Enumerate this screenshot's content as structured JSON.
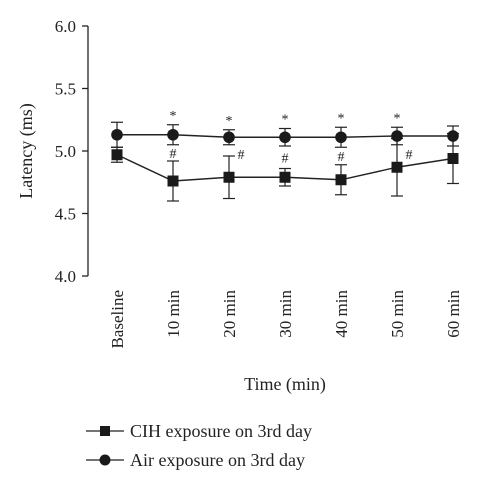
{
  "chart_data": {
    "type": "line",
    "ylabel": "Latency (ms)",
    "xlabel": "Time (min)",
    "ylim": [
      4.0,
      6.0
    ],
    "yticks": [
      "4.0",
      "4.5",
      "5.0",
      "5.5",
      "6.0"
    ],
    "categories": [
      "Baseline",
      "10 min",
      "20 min",
      "30 min",
      "40 min",
      "50 min",
      "60 min"
    ],
    "grid": false,
    "legend_position": "bottom",
    "series": [
      {
        "name": "CIH exposure on 3rd day",
        "marker": "square",
        "values": [
          4.97,
          4.76,
          4.79,
          4.79,
          4.77,
          4.87,
          4.94
        ],
        "error": [
          0.06,
          0.16,
          0.17,
          0.07,
          0.12,
          0.23,
          0.2
        ]
      },
      {
        "name": "Air exposure on 3rd day",
        "marker": "circle",
        "values": [
          5.13,
          5.13,
          5.11,
          5.11,
          5.11,
          5.12,
          5.12
        ],
        "error": [
          0.1,
          0.08,
          0.06,
          0.07,
          0.08,
          0.07,
          0.08
        ]
      }
    ],
    "annotations": {
      "star_symbol": "*",
      "hash_symbol": "#",
      "star_categories": [
        "10 min",
        "20 min",
        "30 min",
        "40 min",
        "50 min"
      ],
      "hash_categories": [
        "10 min",
        "20 min",
        "30 min",
        "40 min",
        "50 min"
      ]
    },
    "colors": {
      "line": "#222222",
      "marker": "#1a1a1a"
    }
  }
}
